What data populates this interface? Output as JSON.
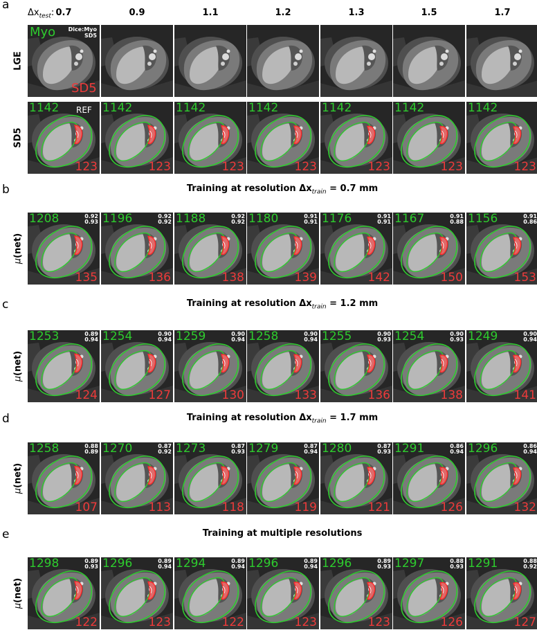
{
  "panel_letters": {
    "a": "a",
    "b": "b",
    "c": "c",
    "d": "d",
    "e": "e"
  },
  "header": {
    "dx_label_prefix": "Δx",
    "dx_label_sub": "test",
    "dx_label_suffix": ":",
    "columns": [
      "0.7",
      "0.9",
      "1.1",
      "1.2",
      "1.3",
      "1.5",
      "1.7"
    ]
  },
  "panel_a": {
    "lge_row_label": "LGE",
    "sd5_row_label": "SD5",
    "legend": {
      "myo": "Myo",
      "dice_line1": "Dice:Myo",
      "dice_line2": "SD5",
      "sd5": "SD5"
    },
    "ref_label": "REF",
    "sd5_row": {
      "myo_values": [
        "1142",
        "1142",
        "1142",
        "1142",
        "1142",
        "1142",
        "1142"
      ],
      "scar_values": [
        "123",
        "123",
        "123",
        "123",
        "123",
        "123",
        "123"
      ]
    }
  },
  "sections": [
    {
      "letter": "b",
      "title_prefix": "Training at resolution Δx",
      "title_sub": "train",
      "title_suffix": " = 0.7 mm",
      "row_label_mu": "μ",
      "row_label_rest": "(net)",
      "myo_values": [
        "1208",
        "1196",
        "1188",
        "1180",
        "1176",
        "1167",
        "1156"
      ],
      "scar_values": [
        "135",
        "136",
        "138",
        "139",
        "142",
        "150",
        "153"
      ],
      "dice_myo": [
        "0.92",
        "0.92",
        "0.92",
        "0.91",
        "0.91",
        "0.91",
        "0.91"
      ],
      "dice_sd5": [
        "0.93",
        "0.92",
        "0.92",
        "0.91",
        "0.91",
        "0.88",
        "0.86"
      ]
    },
    {
      "letter": "c",
      "title_prefix": "Training at resolution Δx",
      "title_sub": "train",
      "title_suffix": " = 1.2 mm",
      "row_label_mu": "μ",
      "row_label_rest": "(net)",
      "myo_values": [
        "1253",
        "1254",
        "1259",
        "1258",
        "1255",
        "1254",
        "1249"
      ],
      "scar_values": [
        "124",
        "127",
        "130",
        "133",
        "136",
        "138",
        "141"
      ],
      "dice_myo": [
        "0.89",
        "0.90",
        "0.90",
        "0.90",
        "0.90",
        "0.90",
        "0.90"
      ],
      "dice_sd5": [
        "0.94",
        "0.94",
        "0.94",
        "0.94",
        "0.93",
        "0.93",
        "0.94"
      ]
    },
    {
      "letter": "d",
      "title_prefix": "Training at resolution Δx",
      "title_sub": "train",
      "title_suffix": " = 1.7 mm",
      "row_label_mu": "μ",
      "row_label_rest": "(net)",
      "myo_values": [
        "1258",
        "1270",
        "1273",
        "1279",
        "1280",
        "1291",
        "1296"
      ],
      "scar_values": [
        "107",
        "113",
        "118",
        "119",
        "121",
        "126",
        "132"
      ],
      "dice_myo": [
        "0.88",
        "0.87",
        "0.87",
        "0.87",
        "0.87",
        "0.86",
        "0.86"
      ],
      "dice_sd5": [
        "0.89",
        "0.92",
        "0.93",
        "0.94",
        "0.93",
        "0.94",
        "0.94"
      ]
    },
    {
      "letter": "e",
      "title_prefix": "Training at multiple resolutions",
      "title_sub": "",
      "title_suffix": "",
      "row_label_mu": "μ",
      "row_label_rest": "(net)",
      "myo_values": [
        "1298",
        "1296",
        "1294",
        "1296",
        "1296",
        "1297",
        "1291"
      ],
      "scar_values": [
        "122",
        "123",
        "122",
        "123",
        "123",
        "126",
        "127"
      ],
      "dice_myo": [
        "0.89",
        "0.89",
        "0.89",
        "0.89",
        "0.89",
        "0.88",
        "0.88"
      ],
      "dice_sd5": [
        "0.93",
        "0.94",
        "0.94",
        "0.94",
        "0.93",
        "0.93",
        "0.92"
      ]
    }
  ],
  "colors": {
    "myocardium_contour": "#2ecc2e",
    "scar_contour": "#ee3a3a",
    "scar_fill": "#e06a6a",
    "background": "#1e1e1e"
  }
}
